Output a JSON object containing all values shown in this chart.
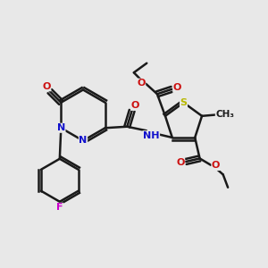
{
  "bg_color": "#e8e8e8",
  "bond_color": "#1a1a1a",
  "bond_width": 1.8,
  "atom_colors": {
    "N": "#1010cc",
    "O": "#cc1010",
    "S": "#b8b800",
    "F": "#cc00cc",
    "C": "#1a1a1a",
    "H": "#1a1a1a"
  },
  "figsize": [
    3.0,
    3.0
  ],
  "dpi": 100
}
